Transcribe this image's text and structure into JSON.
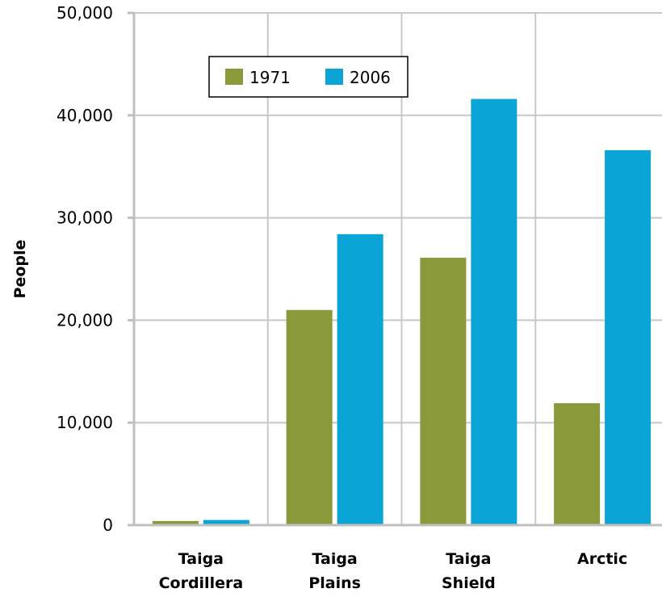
{
  "chart_data": {
    "type": "bar",
    "title": "",
    "xlabel": "",
    "ylabel": "People",
    "ylim": [
      0,
      50000
    ],
    "yticks": [
      0,
      10000,
      20000,
      30000,
      40000,
      50000
    ],
    "ytick_labels": [
      "0",
      "10,000",
      "20,000",
      "30,000",
      "40,000",
      "50,000"
    ],
    "categories": [
      [
        "Taiga",
        "Cordillera"
      ],
      [
        "Taiga",
        "Plains"
      ],
      [
        "Taiga",
        "Shield"
      ],
      [
        "Arctic"
      ]
    ],
    "series": [
      {
        "name": "1971",
        "color": "#8a9a3b",
        "values": [
          400,
          21000,
          26100,
          11900
        ]
      },
      {
        "name": "2006",
        "color": "#0aa5d6",
        "values": [
          500,
          28400,
          41600,
          36600
        ]
      }
    ],
    "grid": true,
    "legend_position": "top-left"
  },
  "colors": {
    "gridline": "#c8c8c8",
    "axis": "#bfbfbf",
    "legend_border": "#000000"
  }
}
